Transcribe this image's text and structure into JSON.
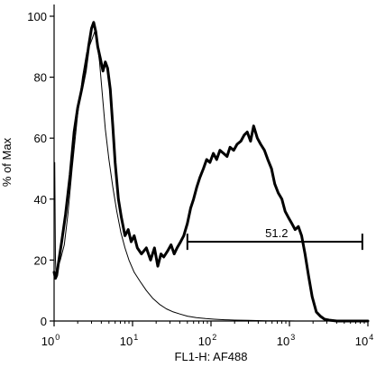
{
  "chart_data": {
    "type": "line",
    "xlabel": "FL1-H: AF488",
    "ylabel": "% of Max",
    "x_scale": "log",
    "xlim": [
      1,
      10000
    ],
    "ylim": [
      0,
      100
    ],
    "x_ticks": [
      {
        "value": 1,
        "base": "10",
        "exp": "0"
      },
      {
        "value": 10,
        "base": "10",
        "exp": "1"
      },
      {
        "value": 100,
        "base": "10",
        "exp": "2"
      },
      {
        "value": 1000,
        "base": "10",
        "exp": "3"
      },
      {
        "value": 10000,
        "base": "10",
        "exp": "4"
      }
    ],
    "y_ticks": [
      0,
      20,
      40,
      60,
      80,
      100
    ],
    "series": [
      {
        "style": "thin",
        "color": "#000000",
        "x": [
          1,
          1.02,
          1.04,
          1.06,
          1.1,
          1.2,
          1.35,
          1.5,
          1.7,
          2.0,
          2.3,
          2.6,
          2.9,
          3.1,
          3.3,
          3.5,
          3.8,
          4.1,
          4.5,
          5.0,
          5.6,
          6.3,
          7.1,
          8.0,
          9.0,
          10.5,
          12.5,
          15,
          18,
          22,
          27,
          33,
          40,
          50,
          65,
          85,
          110,
          150,
          200,
          300,
          500,
          800,
          1200,
          2000,
          4000,
          10000
        ],
        "y": [
          45,
          52,
          20,
          15,
          17,
          20,
          25,
          35,
          50,
          68,
          80,
          88,
          91,
          93,
          95,
          92,
          85,
          75,
          63,
          53,
          44,
          36,
          29,
          24,
          20,
          16,
          13,
          10,
          7.5,
          5.5,
          4,
          3,
          2.3,
          1.6,
          1.1,
          0.8,
          0.6,
          0.4,
          0.3,
          0.2,
          0.1,
          0.05,
          0,
          0,
          0,
          0
        ]
      },
      {
        "style": "bold",
        "color": "#000000",
        "x": [
          1,
          1.04,
          1.08,
          1.15,
          1.25,
          1.4,
          1.6,
          1.8,
          2.0,
          2.25,
          2.5,
          2.75,
          3.0,
          3.2,
          3.4,
          3.6,
          3.9,
          4.2,
          4.5,
          4.8,
          5.2,
          5.6,
          6.0,
          6.6,
          7.2,
          8.0,
          8.8,
          9.6,
          10.5,
          11.5,
          13,
          15,
          17,
          19,
          21,
          23,
          25,
          28,
          31,
          34,
          37,
          41,
          45,
          50,
          55,
          60,
          66,
          72,
          80,
          88,
          97,
          107,
          118,
          130,
          145,
          160,
          175,
          195,
          215,
          240,
          265,
          290,
          320,
          350,
          390,
          430,
          480,
          530,
          590,
          650,
          720,
          800,
          880,
          970,
          1070,
          1180,
          1300,
          1430,
          1580,
          1750,
          1950,
          2200,
          2500,
          2800,
          3200,
          4000,
          10000
        ],
        "y": [
          16,
          14,
          15,
          20,
          26,
          35,
          48,
          62,
          70,
          76,
          82,
          90,
          96,
          98,
          95,
          90,
          86,
          82,
          85,
          83,
          76,
          64,
          52,
          40,
          34,
          28,
          30,
          26,
          28,
          24,
          22,
          24,
          20,
          24,
          18,
          22,
          21,
          23,
          25,
          22,
          24,
          26,
          28,
          32,
          37,
          40,
          44,
          47,
          50,
          53,
          52,
          55,
          53,
          56,
          55,
          54,
          57,
          56,
          58,
          59,
          61,
          62,
          59,
          64,
          60,
          58,
          56,
          53,
          50,
          45,
          42,
          40,
          36,
          34,
          32,
          30,
          31,
          28,
          22,
          15,
          8,
          3,
          1.5,
          0.6,
          0.3,
          0,
          0
        ]
      }
    ],
    "gate": {
      "label": "51.2",
      "x_start": 50,
      "x_end": 8500,
      "y": 26
    }
  }
}
